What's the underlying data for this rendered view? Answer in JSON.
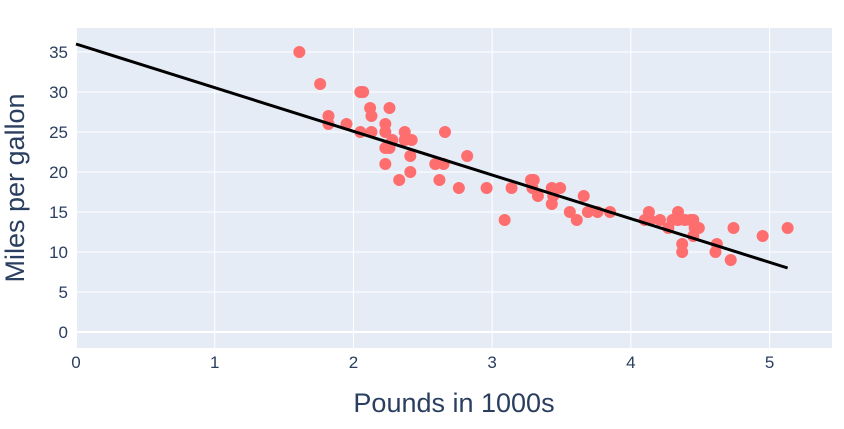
{
  "chart_data": {
    "type": "scatter",
    "title": "",
    "xlabel": "Pounds in 1000s",
    "ylabel": "Miles per gallon",
    "xlim": [
      0,
      5.45
    ],
    "ylim": [
      -2,
      38
    ],
    "xticks": [
      0,
      1,
      2,
      3,
      4,
      5
    ],
    "yticks": [
      0,
      5,
      10,
      15,
      20,
      25,
      30,
      35
    ],
    "grid": true,
    "legend": "none",
    "colors": {
      "plot_bg": "#E5ECF6",
      "marker": "#FF6E6E",
      "line": "#000000",
      "grid": "#FFFFFF"
    },
    "points": [
      [
        1.61,
        35
      ],
      [
        1.76,
        31
      ],
      [
        1.82,
        27
      ],
      [
        1.82,
        26
      ],
      [
        1.95,
        26
      ],
      [
        2.05,
        30
      ],
      [
        2.07,
        30
      ],
      [
        2.05,
        25
      ],
      [
        2.12,
        28
      ],
      [
        2.13,
        27
      ],
      [
        2.13,
        25
      ],
      [
        2.23,
        26
      ],
      [
        2.23,
        25
      ],
      [
        2.23,
        23
      ],
      [
        2.23,
        21
      ],
      [
        2.26,
        28
      ],
      [
        2.26,
        23
      ],
      [
        2.28,
        24
      ],
      [
        2.33,
        19
      ],
      [
        2.37,
        25
      ],
      [
        2.37,
        24
      ],
      [
        2.41,
        20
      ],
      [
        2.41,
        22
      ],
      [
        2.42,
        24
      ],
      [
        2.66,
        25
      ],
      [
        2.59,
        21
      ],
      [
        2.65,
        21
      ],
      [
        2.62,
        19
      ],
      [
        2.76,
        18
      ],
      [
        2.82,
        22
      ],
      [
        2.96,
        18
      ],
      [
        3.09,
        14
      ],
      [
        3.14,
        18
      ],
      [
        3.28,
        19
      ],
      [
        3.3,
        19
      ],
      [
        3.29,
        18
      ],
      [
        3.33,
        17
      ],
      [
        3.43,
        16
      ],
      [
        3.43,
        18
      ],
      [
        3.44,
        17
      ],
      [
        3.49,
        18
      ],
      [
        3.56,
        15
      ],
      [
        3.61,
        14
      ],
      [
        3.66,
        17
      ],
      [
        3.69,
        15
      ],
      [
        3.76,
        15
      ],
      [
        3.85,
        15
      ],
      [
        4.1,
        14
      ],
      [
        4.13,
        15
      ],
      [
        4.14,
        14
      ],
      [
        4.21,
        14
      ],
      [
        4.27,
        13
      ],
      [
        4.34,
        15
      ],
      [
        4.34,
        14
      ],
      [
        4.39,
        14
      ],
      [
        4.43,
        14
      ],
      [
        4.46,
        13
      ],
      [
        4.49,
        13
      ],
      [
        4.45,
        12
      ],
      [
        4.37,
        11
      ],
      [
        4.37,
        10
      ],
      [
        4.61,
        10
      ],
      [
        4.62,
        11
      ],
      [
        4.72,
        9
      ],
      [
        4.74,
        13
      ],
      [
        4.95,
        12
      ],
      [
        5.13,
        13
      ],
      [
        4.45,
        14
      ],
      [
        4.3,
        14
      ]
    ],
    "trendline": {
      "x": [
        0,
        5.13
      ],
      "y": [
        36,
        8
      ]
    }
  }
}
